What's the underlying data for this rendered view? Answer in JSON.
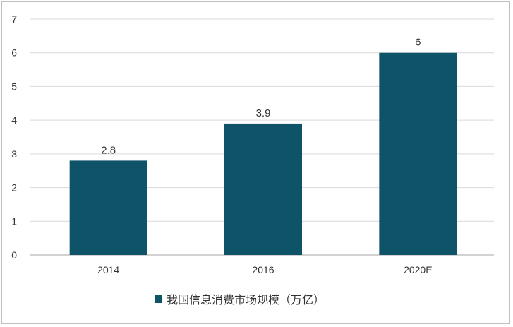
{
  "chart_data": {
    "type": "bar",
    "categories": [
      "2014",
      "2016",
      "2020E"
    ],
    "series": [
      {
        "name": "我国信息消费市场规模（万亿）",
        "values": [
          2.8,
          3.9,
          6
        ]
      }
    ],
    "data_labels": [
      "2.8",
      "3.9",
      "6"
    ],
    "yticks": [
      "0",
      "1",
      "2",
      "3",
      "4",
      "5",
      "6",
      "7"
    ],
    "ylim": [
      0,
      7
    ],
    "grid": true,
    "legend_position": "bottom",
    "bar_color": "#0e5368",
    "grid_color": "#d9d9d9",
    "axis_color": "#a6a6a6"
  }
}
